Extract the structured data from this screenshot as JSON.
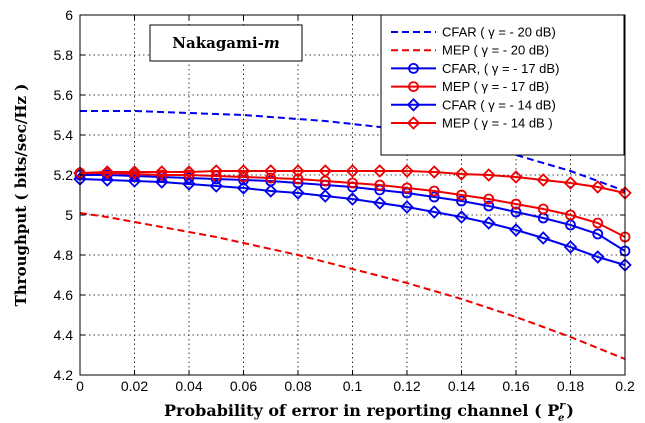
{
  "chart_data": {
    "type": "line",
    "title": "",
    "xlabel": "Probability of error in reporting channel ( P",
    "xlabel_sup": "r",
    "xlabel_sub": "e",
    "xlabel_close": ")",
    "ylabel": "Throughput ( bits/sec/Hz )",
    "xlim": [
      0,
      0.2
    ],
    "ylim": [
      4.2,
      6
    ],
    "grid": true,
    "legend_position": "top-right",
    "annotation": {
      "text_main": "Nakagami-",
      "text_italic": "m"
    },
    "x_ticks": [
      "0",
      "0.02",
      "0.04",
      "0.06",
      "0.08",
      "0.1",
      "0.12",
      "0.14",
      "0.16",
      "0.18",
      "0.2"
    ],
    "y_ticks": [
      "4.2",
      "4.4",
      "4.6",
      "4.8",
      "5",
      "5.2",
      "5.4",
      "5.6",
      "5.8",
      "6"
    ],
    "x": [
      0,
      0.01,
      0.02,
      0.03,
      0.04,
      0.05,
      0.06,
      0.07,
      0.08,
      0.09,
      0.1,
      0.11,
      0.12,
      0.13,
      0.14,
      0.15,
      0.16,
      0.17,
      0.18,
      0.19,
      0.2
    ],
    "series": [
      {
        "name": "CFAR ( γ = - 20 dB)",
        "color": "#0000ee",
        "dash": "dashed",
        "marker": "none",
        "values": [
          5.52,
          5.52,
          5.52,
          5.515,
          5.51,
          5.505,
          5.5,
          5.49,
          5.48,
          5.47,
          5.455,
          5.44,
          5.42,
          5.4,
          5.37,
          5.34,
          5.3,
          5.26,
          5.22,
          5.17,
          5.12
        ]
      },
      {
        "name": "MEP ( γ = - 20 dB)",
        "color": "#ee0000",
        "dash": "dashed",
        "marker": "none",
        "values": [
          5.01,
          4.99,
          4.965,
          4.94,
          4.915,
          4.89,
          4.86,
          4.83,
          4.8,
          4.765,
          4.73,
          4.695,
          4.66,
          4.62,
          4.58,
          4.535,
          4.49,
          4.44,
          4.39,
          4.335,
          4.28
        ]
      },
      {
        "name": "CFAR, ( γ = - 17 dB)",
        "color": "#0000ee",
        "dash": "solid",
        "marker": "circle",
        "values": [
          5.2,
          5.2,
          5.195,
          5.19,
          5.185,
          5.18,
          5.175,
          5.17,
          5.16,
          5.15,
          5.14,
          5.125,
          5.11,
          5.09,
          5.07,
          5.045,
          5.015,
          4.985,
          4.95,
          4.905,
          4.82
        ]
      },
      {
        "name": "MEP ( γ = - 17 dB)",
        "color": "#ee0000",
        "dash": "solid",
        "marker": "circle",
        "values": [
          5.21,
          5.21,
          5.205,
          5.2,
          5.2,
          5.195,
          5.19,
          5.185,
          5.18,
          5.17,
          5.16,
          5.15,
          5.135,
          5.12,
          5.1,
          5.08,
          5.055,
          5.03,
          5.0,
          4.96,
          4.89
        ]
      },
      {
        "name": "CFAR ( γ = - 14 dB)",
        "color": "#0000ee",
        "dash": "solid",
        "marker": "diamond",
        "values": [
          5.18,
          5.175,
          5.17,
          5.165,
          5.155,
          5.145,
          5.135,
          5.12,
          5.11,
          5.095,
          5.08,
          5.06,
          5.04,
          5.015,
          4.99,
          4.96,
          4.925,
          4.885,
          4.84,
          4.79,
          4.75
        ]
      },
      {
        "name": "MEP ( γ = - 14 dB )",
        "color": "#ee0000",
        "dash": "solid",
        "marker": "diamond",
        "values": [
          5.21,
          5.215,
          5.215,
          5.215,
          5.215,
          5.22,
          5.22,
          5.22,
          5.22,
          5.22,
          5.22,
          5.22,
          5.22,
          5.215,
          5.205,
          5.2,
          5.19,
          5.175,
          5.16,
          5.14,
          5.11
        ]
      }
    ]
  }
}
